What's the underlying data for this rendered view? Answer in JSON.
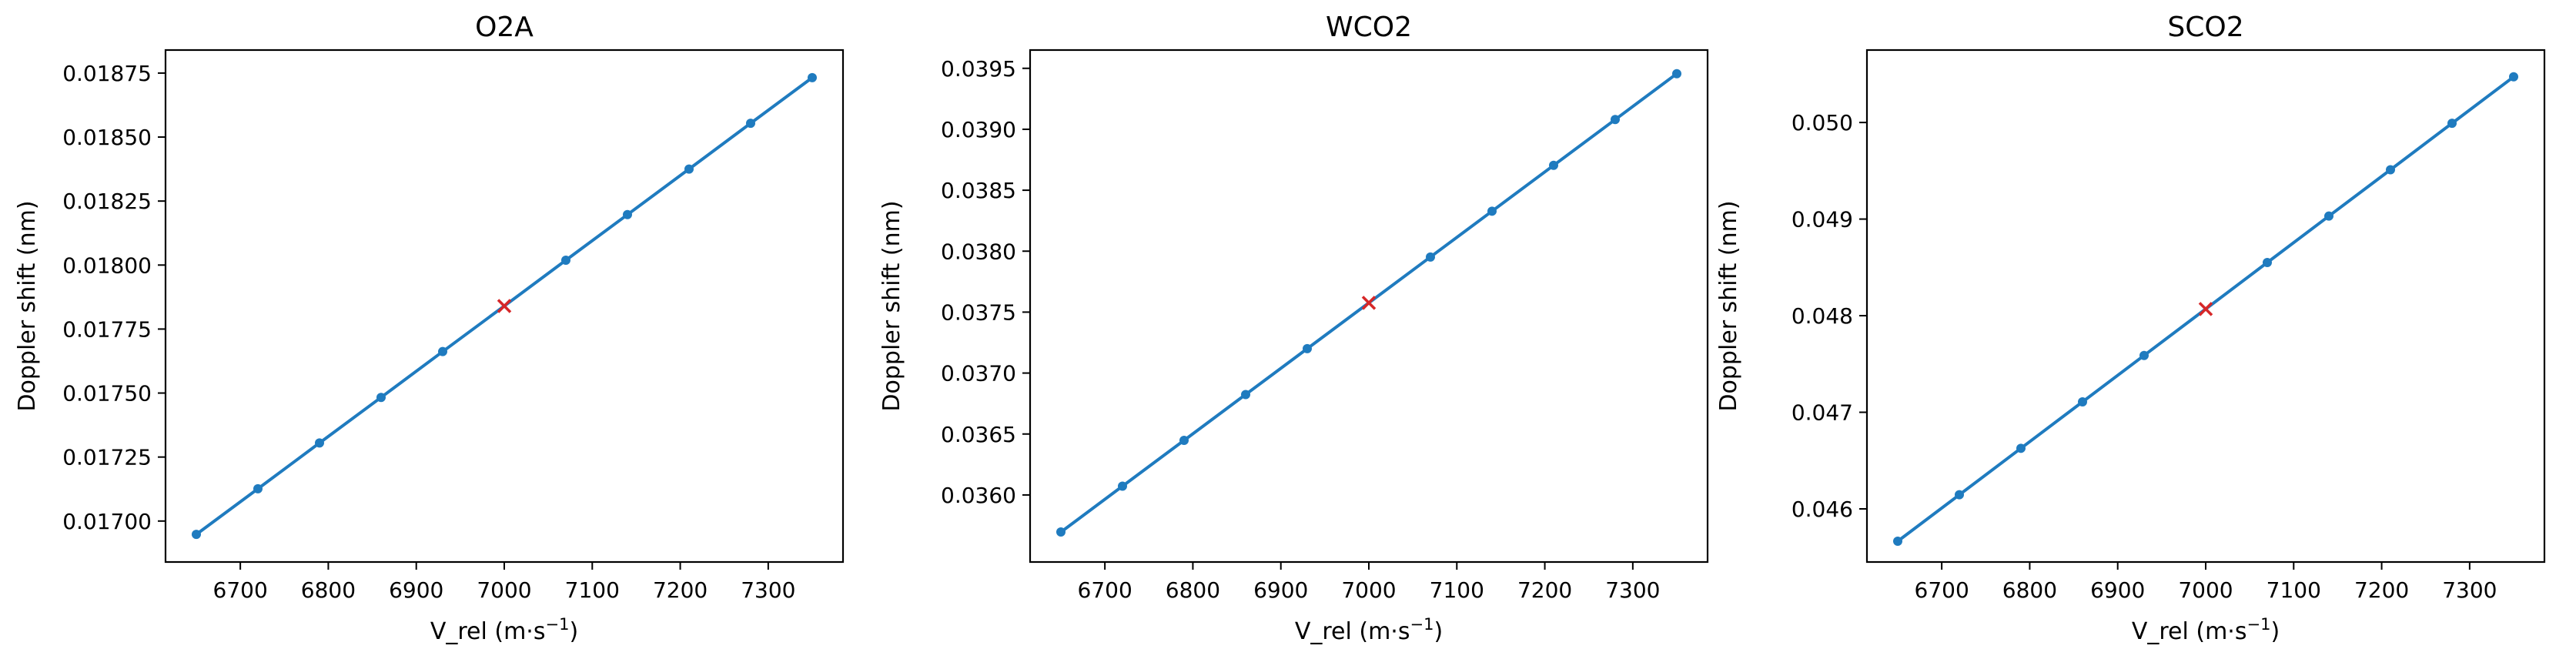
{
  "colors": {
    "series": "#1f7bbf",
    "marker_current": "#d62728",
    "axes": "#000000"
  },
  "chart_data": [
    {
      "type": "line",
      "title": "O2A",
      "xlabel": "V_rel (m·s",
      "xlabel_sup": "−1",
      "xlabel_end": ")",
      "ylabel": "Doppler shift (nm)",
      "xlim": [
        6615,
        7385
      ],
      "ylim": [
        0.01684,
        0.01884
      ],
      "xticks": [
        6700,
        6800,
        6900,
        7000,
        7100,
        7200,
        7300
      ],
      "yticks": [
        0.017,
        0.01725,
        0.0175,
        0.01775,
        0.018,
        0.01825,
        0.0185,
        0.01875
      ],
      "yticklabels": [
        "0.01700",
        "0.01725",
        "0.01750",
        "0.01775",
        "0.01800",
        "0.01825",
        "0.01850",
        "0.01875"
      ],
      "x": [
        6650,
        6720,
        6790,
        6860,
        6930,
        7000,
        7070,
        7140,
        7210,
        7280,
        7350
      ],
      "y": [
        0.016948,
        0.017126,
        0.017305,
        0.017483,
        0.017662,
        0.01784,
        0.018019,
        0.018197,
        0.018375,
        0.018554,
        0.018732
      ],
      "highlight": {
        "x": 7000,
        "y": 0.01784,
        "marker": "x"
      }
    },
    {
      "type": "line",
      "title": "WCO2",
      "xlabel": "V_rel (m·s",
      "xlabel_sup": "−1",
      "xlabel_end": ")",
      "ylabel": "Doppler shift (nm)",
      "xlim": [
        6615,
        7385
      ],
      "ylim": [
        0.03545,
        0.03965
      ],
      "xticks": [
        6700,
        6800,
        6900,
        7000,
        7100,
        7200,
        7300
      ],
      "yticks": [
        0.036,
        0.0365,
        0.037,
        0.0375,
        0.038,
        0.0385,
        0.039,
        0.0395
      ],
      "yticklabels": [
        "0.0360",
        "0.0365",
        "0.0370",
        "0.0375",
        "0.0380",
        "0.0385",
        "0.0390",
        "0.0395"
      ],
      "x": [
        6650,
        6720,
        6790,
        6860,
        6930,
        7000,
        7070,
        7140,
        7210,
        7280,
        7350
      ],
      "y": [
        0.035696,
        0.036072,
        0.036448,
        0.036824,
        0.0372,
        0.037576,
        0.037952,
        0.038328,
        0.038704,
        0.03908,
        0.039456
      ],
      "highlight": {
        "x": 7000,
        "y": 0.037576,
        "marker": "x"
      }
    },
    {
      "type": "line",
      "title": "SCO2",
      "xlabel": "V_rel (m·s",
      "xlabel_sup": "−1",
      "xlabel_end": ")",
      "ylabel": "Doppler shift (nm)",
      "xlim": [
        6615,
        7385
      ],
      "ylim": [
        0.04545,
        0.05075
      ],
      "xticks": [
        6700,
        6800,
        6900,
        7000,
        7100,
        7200,
        7300
      ],
      "yticks": [
        0.046,
        0.047,
        0.048,
        0.049,
        0.05
      ],
      "yticklabels": [
        "0.046",
        "0.047",
        "0.048",
        "0.049",
        "0.050"
      ],
      "x": [
        6650,
        6720,
        6790,
        6860,
        6930,
        7000,
        7070,
        7140,
        7210,
        7280,
        7350
      ],
      "y": [
        0.045665,
        0.046146,
        0.046627,
        0.047108,
        0.047588,
        0.048069,
        0.04855,
        0.049031,
        0.049511,
        0.049992,
        0.050473
      ],
      "highlight": {
        "x": 7000,
        "y": 0.048069,
        "marker": "x"
      }
    }
  ]
}
